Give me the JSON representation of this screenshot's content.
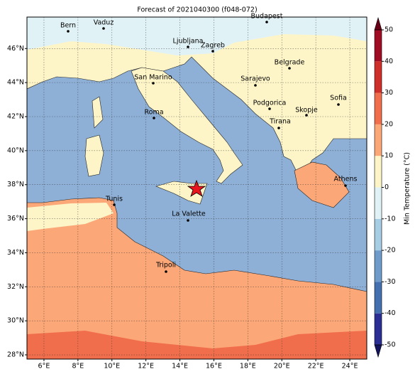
{
  "title": "Forecast of 2021040300 (f048-072)",
  "map": {
    "xlim": [
      5,
      25
    ],
    "ylim": [
      27.75,
      47.85
    ],
    "xticks": [
      {
        "value": 6,
        "label": "6°E"
      },
      {
        "value": 8,
        "label": "8°E"
      },
      {
        "value": 10,
        "label": "10°E"
      },
      {
        "value": 12,
        "label": "12°E"
      },
      {
        "value": 14,
        "label": "14°E"
      },
      {
        "value": 16,
        "label": "16°E"
      },
      {
        "value": 18,
        "label": "18°E"
      },
      {
        "value": 20,
        "label": "20°E"
      },
      {
        "value": 22,
        "label": "22°E"
      },
      {
        "value": 24,
        "label": "24°E"
      }
    ],
    "yticks": [
      {
        "value": 28,
        "label": "28°N"
      },
      {
        "value": 30,
        "label": "30°N"
      },
      {
        "value": 32,
        "label": "32°N"
      },
      {
        "value": 34,
        "label": "34°N"
      },
      {
        "value": 36,
        "label": "36°N"
      },
      {
        "value": 38,
        "label": "38°N"
      },
      {
        "value": 40,
        "label": "40°N"
      },
      {
        "value": 42,
        "label": "42°N"
      },
      {
        "value": 44,
        "label": "44°N"
      },
      {
        "value": 46,
        "label": "46°N"
      }
    ],
    "grid": true,
    "cities": [
      "Bern",
      "Vaduz",
      "Budapest",
      "Ljubljana",
      "Zagreb",
      "Belgrade",
      "San Marino",
      "Sarajevo",
      "Sofia",
      "Podgorica",
      "Skopje",
      "Roma",
      "Tirana",
      "Athens",
      "Tunis",
      "La Valette",
      "Tripoli"
    ]
  },
  "colorbar": {
    "label": "Min Temperature (°C)",
    "lim": [
      -50,
      50
    ],
    "ticks": [
      -50,
      -40,
      -30,
      -20,
      -10,
      0,
      10,
      20,
      30,
      40,
      50
    ],
    "colors": [
      "#2b2f93",
      "#4470b0",
      "#6f9bcb",
      "#a6cde3",
      "#e1f2f7",
      "#fdf5c8",
      "#fca777",
      "#f06e4c",
      "#cf2f2b",
      "#a00c24"
    ],
    "extend_colors": [
      "#14145e",
      "#6a0016"
    ]
  }
}
